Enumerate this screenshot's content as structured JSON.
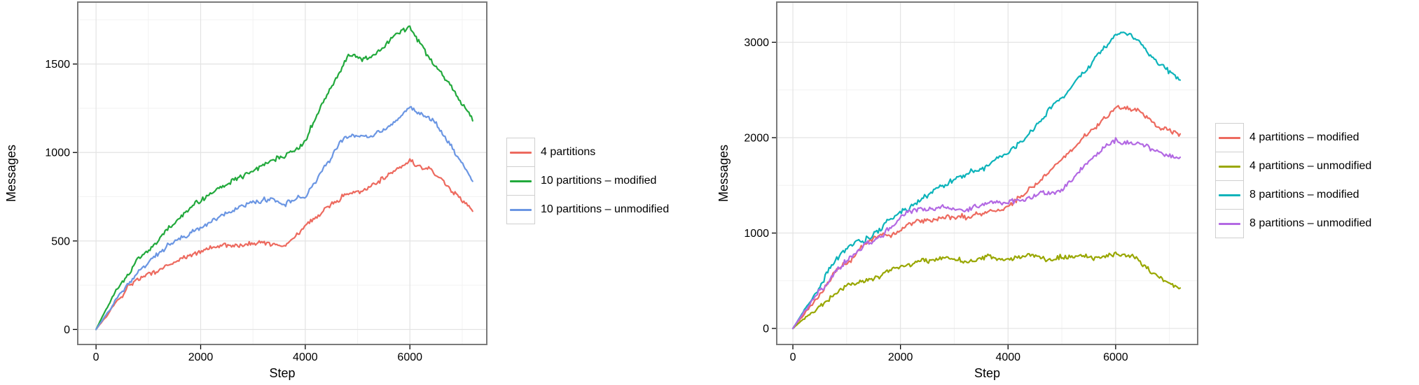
{
  "style": {
    "background": "#ffffff",
    "panel_border": "#7a7a7a",
    "grid_major": "#e3e3e3",
    "grid_minor": "#f2f2f2",
    "tick_color": "#000000",
    "text_color": "#000000"
  },
  "chart_data": [
    {
      "type": "line",
      "title": "",
      "xlabel": "Step",
      "ylabel": "Messages",
      "grid": true,
      "legend_position": "right",
      "xlim": [
        -350,
        7470
      ],
      "ylim": [
        -85,
        1850
      ],
      "x_tick_values": [
        0,
        2000,
        4000,
        6000
      ],
      "x_tick_labels": [
        "0",
        "2000",
        "4000",
        "6000"
      ],
      "x_minor_gridlines": [
        1000,
        3000,
        5000,
        7000
      ],
      "y_tick_values": [
        0,
        500,
        1000,
        1500
      ],
      "y_tick_labels": [
        "0",
        "500",
        "1000",
        "1500"
      ],
      "y_minor_gridlines": [
        250,
        750,
        1250,
        1750
      ],
      "series": [
        {
          "name": "4 partitions",
          "color": "#ed6a5f",
          "x": [
            0,
            400,
            800,
            1200,
            1600,
            2000,
            2400,
            2800,
            3200,
            3600,
            4000,
            4400,
            4800,
            5200,
            5600,
            6000,
            6400,
            6800,
            7200
          ],
          "y": [
            0,
            150,
            270,
            340,
            430,
            470,
            500,
            505,
            520,
            495,
            570,
            700,
            790,
            830,
            905,
            980,
            930,
            820,
            705
          ]
        },
        {
          "name": "10 partitions – modified",
          "color": "#22a93c",
          "x": [
            0,
            400,
            800,
            1200,
            1600,
            2000,
            2400,
            2800,
            3200,
            3600,
            4000,
            4400,
            4800,
            5200,
            5600,
            6000,
            6400,
            6800,
            7200
          ],
          "y": [
            0,
            230,
            390,
            500,
            610,
            700,
            775,
            835,
            900,
            950,
            1060,
            1330,
            1555,
            1560,
            1650,
            1730,
            1555,
            1395,
            1215
          ]
        },
        {
          "name": "10 partitions – unmodified",
          "color": "#6b96e3",
          "x": [
            0,
            400,
            800,
            1200,
            1600,
            2000,
            2400,
            2800,
            3200,
            3600,
            4000,
            4400,
            4800,
            5200,
            5600,
            6000,
            6400,
            6800,
            7200
          ],
          "y": [
            0,
            180,
            330,
            450,
            540,
            600,
            660,
            700,
            730,
            715,
            780,
            950,
            1120,
            1105,
            1160,
            1235,
            1185,
            1030,
            835
          ]
        }
      ]
    },
    {
      "type": "line",
      "title": "",
      "xlabel": "Step",
      "ylabel": "Messages",
      "grid": true,
      "legend_position": "right",
      "xlim": [
        -300,
        7525
      ],
      "ylim": [
        -168,
        3421
      ],
      "x_tick_values": [
        0,
        2000,
        4000,
        6000
      ],
      "x_tick_labels": [
        "0",
        "2000",
        "4000",
        "6000"
      ],
      "x_minor_gridlines": [
        1000,
        3000,
        5000,
        7000
      ],
      "y_tick_values": [
        0,
        1000,
        2000,
        3000
      ],
      "y_tick_labels": [
        "0",
        "1000",
        "2000",
        "3000"
      ],
      "y_minor_gridlines": [
        500,
        1500,
        2500
      ],
      "series": [
        {
          "name": "4 partitions – modified",
          "color": "#ed6a5f",
          "x": [
            0,
            400,
            800,
            1200,
            1600,
            2000,
            2400,
            2800,
            3200,
            3600,
            4000,
            4400,
            4800,
            5200,
            5600,
            6000,
            6400,
            6800,
            7200
          ],
          "y": [
            0,
            300,
            600,
            800,
            950,
            1060,
            1150,
            1200,
            1210,
            1255,
            1310,
            1500,
            1700,
            1950,
            2160,
            2360,
            2330,
            2160,
            2040
          ]
        },
        {
          "name": "4 partitions – unmodified",
          "color": "#99a700",
          "x": [
            0,
            400,
            800,
            1200,
            1600,
            2000,
            2400,
            2800,
            3200,
            3600,
            4000,
            4400,
            4800,
            5200,
            5600,
            6000,
            6400,
            6800,
            7200
          ],
          "y": [
            0,
            200,
            400,
            510,
            600,
            700,
            750,
            780,
            765,
            800,
            785,
            805,
            785,
            825,
            760,
            800,
            755,
            560,
            410
          ]
        },
        {
          "name": "8 partitions – modified",
          "color": "#0cb3ba",
          "x": [
            0,
            400,
            800,
            1200,
            1600,
            2000,
            2400,
            2800,
            3200,
            3600,
            4000,
            4400,
            4800,
            5200,
            5600,
            6000,
            6400,
            6800,
            7200
          ],
          "y": [
            0,
            350,
            690,
            860,
            1000,
            1160,
            1350,
            1500,
            1610,
            1760,
            1900,
            2110,
            2360,
            2610,
            2870,
            3120,
            3060,
            2820,
            2630
          ]
        },
        {
          "name": "8 partitions – unmodified",
          "color": "#b369e3",
          "x": [
            0,
            400,
            800,
            1200,
            1600,
            2000,
            2400,
            2800,
            3200,
            3600,
            4000,
            4400,
            4800,
            5200,
            5600,
            6000,
            6400,
            6800,
            7200
          ],
          "y": [
            0,
            330,
            640,
            850,
            1010,
            1210,
            1260,
            1255,
            1210,
            1255,
            1260,
            1310,
            1410,
            1560,
            1760,
            1960,
            1905,
            1800,
            1705
          ]
        }
      ]
    }
  ]
}
